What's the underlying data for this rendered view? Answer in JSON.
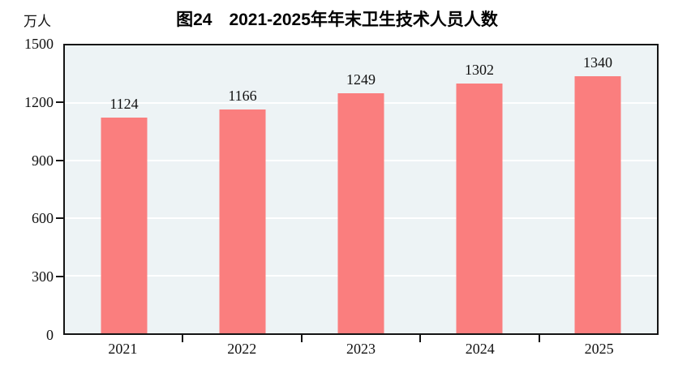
{
  "chart_data": {
    "type": "bar",
    "title": "图24　2021-2025年年末卫生技术人员人数",
    "unit_label": "万人",
    "categories": [
      "2021",
      "2022",
      "2023",
      "2024",
      "2025"
    ],
    "values": [
      1124,
      1166,
      1249,
      1302,
      1340
    ],
    "xlabel": "",
    "ylabel": "万人",
    "ylim": [
      0,
      1500
    ],
    "yticks": [
      0,
      300,
      600,
      900,
      1200,
      1500
    ],
    "grid": true,
    "legend_position": "none",
    "colors": {
      "bar": "#FA7E7E",
      "plot_background": "#EDF3F5",
      "gridline": "#FFFFFF",
      "axis": "#141414",
      "text": "#111111"
    }
  }
}
